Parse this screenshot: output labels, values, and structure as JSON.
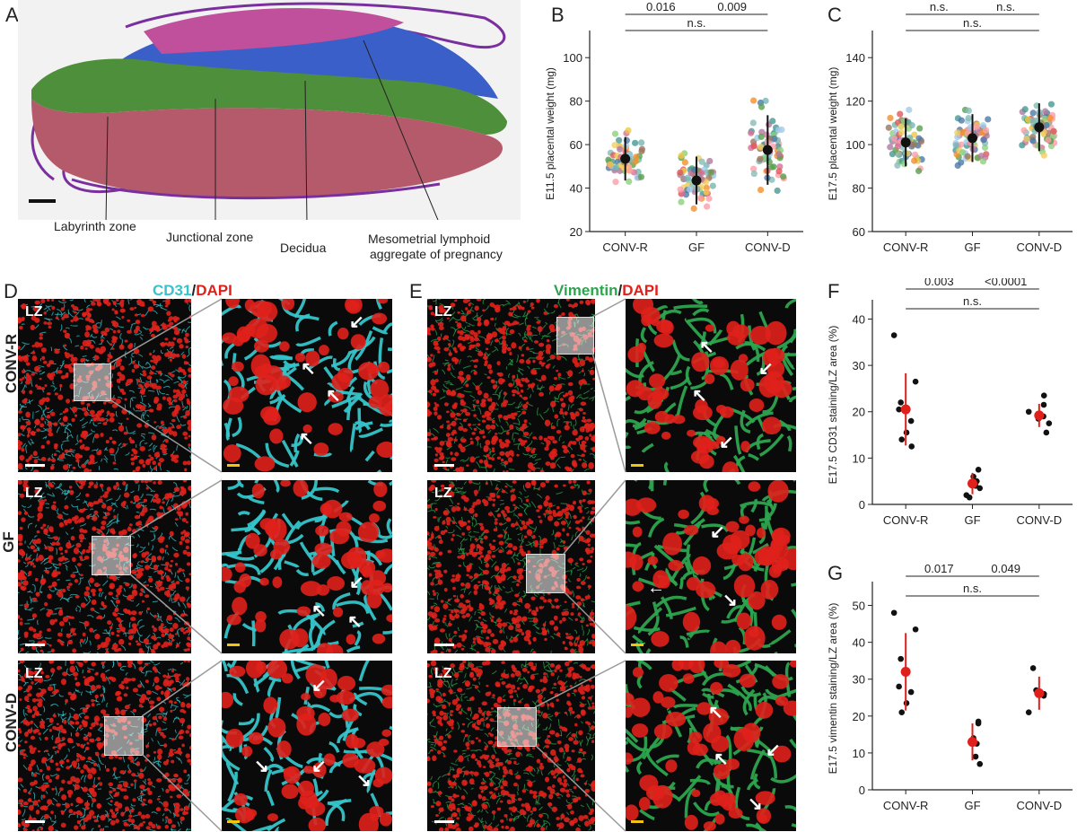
{
  "panels": {
    "A": {
      "label": "A",
      "annotations": [
        "Labyrinth zone",
        "Junctional zone",
        "Decidua",
        "Mesometrial lymphoid",
        "aggregate of pregnancy"
      ]
    },
    "B": {
      "label": "B"
    },
    "C": {
      "label": "C"
    },
    "D": {
      "label": "D",
      "header_a": "CD31",
      "header_sep": "/",
      "header_b": "DAPI",
      "rows": [
        "CONV-R",
        "GF",
        "CONV-D"
      ],
      "lz": "LZ"
    },
    "E": {
      "label": "E",
      "header_a": "Vimentin",
      "header_sep": "/",
      "header_b": "DAPI",
      "lz": "LZ"
    },
    "F": {
      "label": "F"
    },
    "G": {
      "label": "G"
    }
  },
  "colors": {
    "cd31": "#35c4c9",
    "dapi": "#e0201b",
    "vimentin": "#2da44e",
    "labyrinth": "#b45a6a",
    "junctional": "#4d8f3a",
    "decidua": "#3b5fc9"
  },
  "chart_data": [
    {
      "id": "B",
      "type": "scatter",
      "ylabel": "E11.5 placental weight (mg)",
      "categories": [
        "CONV-R",
        "GF",
        "CONV-D"
      ],
      "ylim": [
        20,
        110
      ],
      "yticks": [
        20,
        40,
        60,
        80,
        100
      ],
      "means": [
        53.5,
        43.5,
        57.5
      ],
      "sd": [
        10,
        11,
        16
      ],
      "brackets": [
        {
          "from": 0,
          "to": 1,
          "text": "0.016",
          "level": 1
        },
        {
          "from": 1,
          "to": 2,
          "text": "0.009",
          "level": 1
        },
        {
          "from": 0,
          "to": 2,
          "text": "n.s.",
          "level": 0
        }
      ]
    },
    {
      "id": "C",
      "type": "scatter",
      "ylabel": "E17.5 placental weight (mg)",
      "categories": [
        "CONV-R",
        "GF",
        "CONV-D"
      ],
      "ylim": [
        60,
        150
      ],
      "yticks": [
        60,
        80,
        100,
        120,
        140
      ],
      "means": [
        101,
        103,
        108
      ],
      "sd": [
        11,
        11,
        11
      ],
      "brackets": [
        {
          "from": 0,
          "to": 1,
          "text": "n.s.",
          "level": 1
        },
        {
          "from": 1,
          "to": 2,
          "text": "n.s.",
          "level": 1
        },
        {
          "from": 0,
          "to": 2,
          "text": "n.s.",
          "level": 0
        }
      ]
    },
    {
      "id": "F",
      "type": "scatter",
      "ylabel": "E17.5 CD31 staining/LZ area (%)",
      "categories": [
        "CONV-R",
        "GF",
        "CONV-D"
      ],
      "ylim": [
        0,
        43
      ],
      "yticks": [
        0,
        10,
        20,
        30,
        40
      ],
      "points": [
        [
          36.5,
          26.5,
          22,
          20.5,
          18,
          15.5,
          14,
          12.5
        ],
        [
          7.5,
          6,
          5,
          4,
          3.5,
          2,
          1.5
        ],
        [
          23.5,
          21.5,
          20,
          19,
          18.5,
          17.5,
          15.5
        ]
      ],
      "means": [
        20.5,
        4.5,
        19.2
      ],
      "sd": [
        7.8,
        2.3,
        2.5
      ],
      "brackets": [
        {
          "from": 0,
          "to": 1,
          "text": "0.003",
          "level": 1
        },
        {
          "from": 1,
          "to": 2,
          "text": "<0.0001",
          "level": 1
        },
        {
          "from": 0,
          "to": 2,
          "text": "n.s.",
          "level": 0
        }
      ]
    },
    {
      "id": "G",
      "type": "scatter",
      "ylabel": "E17.5 vimentin staining/LZ area (%)",
      "categories": [
        "CONV-R",
        "GF",
        "CONV-D"
      ],
      "ylim": [
        0,
        55
      ],
      "yticks": [
        0,
        10,
        20,
        30,
        40,
        50
      ],
      "points": [
        [
          48,
          43.5,
          35.5,
          28,
          26.5,
          23.5,
          21
        ],
        [
          18,
          18.5,
          14,
          12.5,
          9,
          7
        ],
        [
          33,
          27,
          26,
          25.5,
          21
        ]
      ],
      "means": [
        32,
        13,
        26.2
      ],
      "sd": [
        10.5,
        5,
        4.5
      ],
      "brackets": [
        {
          "from": 0,
          "to": 1,
          "text": "0.017",
          "level": 1
        },
        {
          "from": 1,
          "to": 2,
          "text": "0.049",
          "level": 1
        },
        {
          "from": 0,
          "to": 2,
          "text": "n.s.",
          "level": 0
        }
      ]
    }
  ]
}
